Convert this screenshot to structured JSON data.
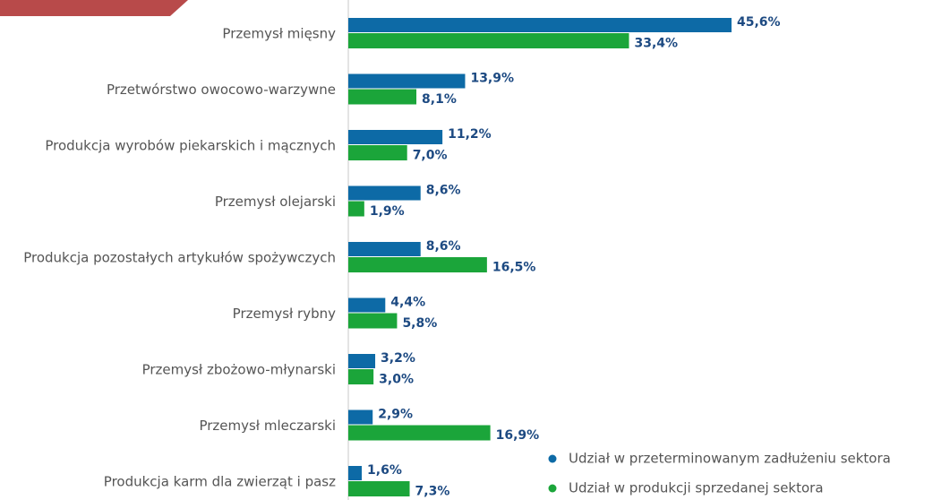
{
  "chart_data": {
    "type": "hbar",
    "categories": [
      "Przemysł mięsny",
      "Przetwórstwo owocowo-warzywne",
      "Produkcja wyrobów piekarskich i mącznych",
      "Przemysł olejarski",
      "Produkcja pozostałych artykułów spożywczych",
      "Przemysł rybny",
      "Przemysł zbożowo-młynarski",
      "Przemysł mleczarski",
      "Produkcja karm dla zwierząt i pasz"
    ],
    "series": [
      {
        "name": "Udział w przeterminowanym zadłużeniu sektora",
        "color": "#0d6aa6",
        "values": [
          45.6,
          13.9,
          11.2,
          8.6,
          8.6,
          4.4,
          3.2,
          2.9,
          1.6
        ],
        "value_labels": [
          "45,6%",
          "13,9%",
          "11,2%",
          "8,6%",
          "8,6%",
          "4,4%",
          "3,2%",
          "2,9%",
          "1,6%"
        ]
      },
      {
        "name": "Udział w produkcji sprzedanej sektora",
        "color": "#1ba53a",
        "values": [
          33.4,
          8.1,
          7.0,
          1.9,
          16.5,
          5.8,
          3.0,
          16.9,
          7.3
        ],
        "value_labels": [
          "33,4%",
          "8,1%",
          "7,0%",
          "1,9%",
          "16,5%",
          "5,8%",
          "3,0%",
          "16,9%",
          "7,3%"
        ]
      }
    ],
    "legend": "bottom-right"
  }
}
